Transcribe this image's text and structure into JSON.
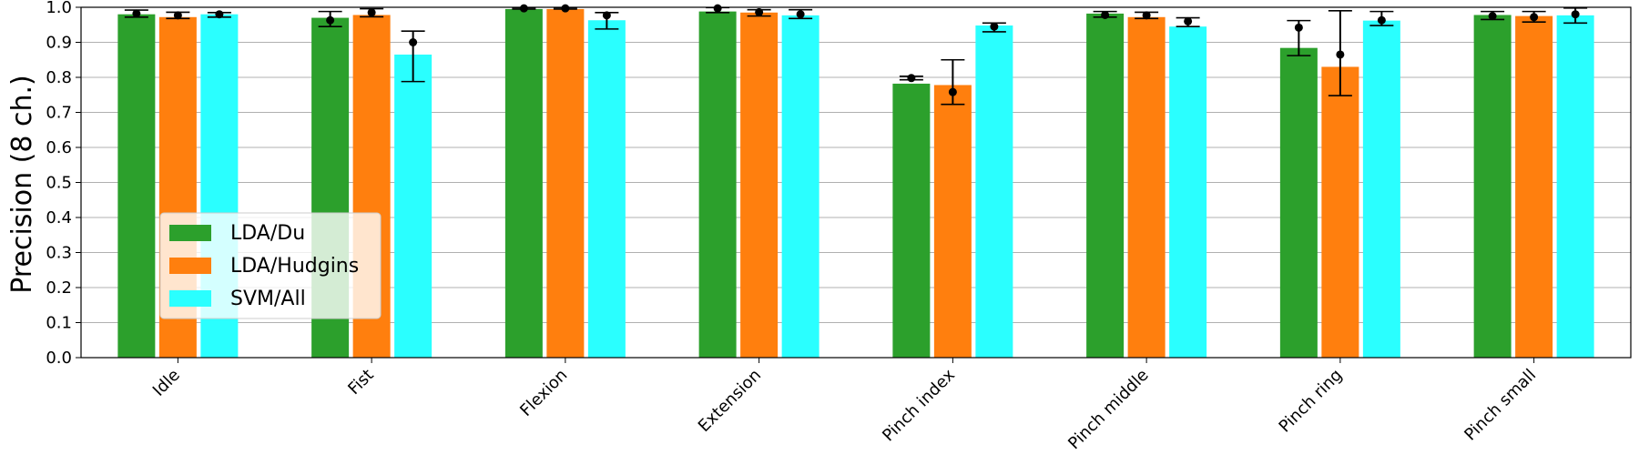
{
  "chart_data": {
    "type": "bar",
    "title": "",
    "xlabel": "",
    "ylabel": "Precision (8 ch.)",
    "ylim": [
      0,
      1.0
    ],
    "yticks": [
      "0.0",
      "0.1",
      "0.2",
      "0.3",
      "0.4",
      "0.5",
      "0.6",
      "0.7",
      "0.8",
      "0.9",
      "1.0"
    ],
    "grid": "horizontal",
    "legend_position": "lower-left",
    "categories": [
      "Idle",
      "Fist",
      "Flexion",
      "Extension",
      "Pinch index",
      "Pinch middle",
      "Pinch ring",
      "Pinch small"
    ],
    "series": [
      {
        "name": "LDA/Du",
        "color": "#2ca02c",
        "values": [
          0.98,
          0.97,
          0.995,
          0.988,
          0.782,
          0.982,
          0.884,
          0.978
        ],
        "points": [
          0.982,
          0.963,
          0.997,
          0.997,
          0.798,
          0.978,
          0.942,
          0.975
        ],
        "err_low": [
          0.972,
          0.945,
          0.995,
          0.985,
          0.793,
          0.972,
          0.862,
          0.965
        ],
        "err_high": [
          0.992,
          0.988,
          0.999,
          0.999,
          0.803,
          0.988,
          0.962,
          0.988
        ]
      },
      {
        "name": "LDA/Hudgins",
        "color": "#ff7f0e",
        "values": [
          0.972,
          0.978,
          0.995,
          0.985,
          0.778,
          0.972,
          0.83,
          0.975
        ],
        "points": [
          0.977,
          0.985,
          0.997,
          0.986,
          0.758,
          0.977,
          0.865,
          0.972
        ],
        "err_low": [
          0.968,
          0.973,
          0.995,
          0.975,
          0.723,
          0.968,
          0.748,
          0.958
        ],
        "err_high": [
          0.986,
          0.996,
          0.999,
          0.993,
          0.85,
          0.986,
          0.99,
          0.988
        ]
      },
      {
        "name": "SVM/All",
        "color": "#2affff",
        "values": [
          0.98,
          0.865,
          0.963,
          0.977,
          0.948,
          0.945,
          0.962,
          0.977
        ],
        "points": [
          0.98,
          0.9,
          0.977,
          0.98,
          0.945,
          0.96,
          0.963,
          0.98
        ],
        "err_low": [
          0.972,
          0.788,
          0.938,
          0.968,
          0.93,
          0.945,
          0.948,
          0.955
        ],
        "err_high": [
          0.985,
          0.932,
          0.985,
          0.993,
          0.955,
          0.97,
          0.988,
          0.998
        ]
      }
    ]
  }
}
